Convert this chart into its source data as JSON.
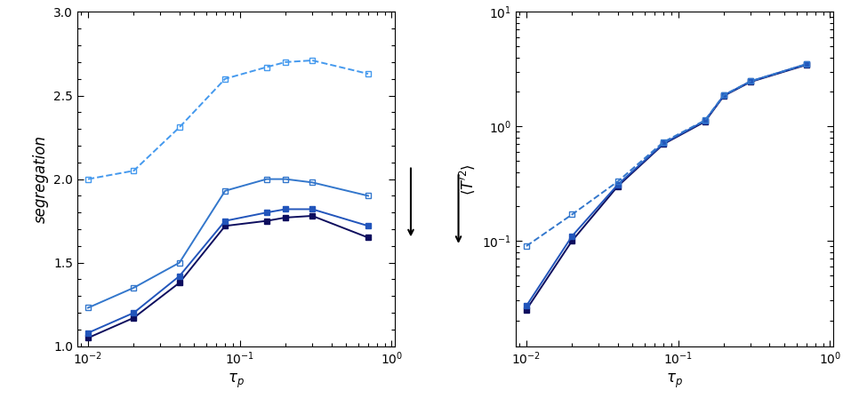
{
  "tau_p": [
    0.01,
    0.02,
    0.04,
    0.08,
    0.15,
    0.2,
    0.3,
    0.7
  ],
  "seg_solid1": [
    1.05,
    1.17,
    1.38,
    1.72,
    1.75,
    1.77,
    1.78,
    1.65
  ],
  "seg_solid2": [
    1.08,
    1.2,
    1.42,
    1.75,
    1.8,
    1.82,
    1.82,
    1.72
  ],
  "seg_solid3": [
    1.23,
    1.35,
    1.5,
    1.93,
    2.0,
    2.0,
    1.98,
    1.9
  ],
  "seg_dashed": [
    2.0,
    2.05,
    2.31,
    2.6,
    2.67,
    2.7,
    2.71,
    2.63
  ],
  "T2_solid1": [
    0.025,
    0.1,
    0.3,
    0.7,
    1.1,
    1.85,
    2.45,
    3.45
  ],
  "T2_solid2": [
    0.027,
    0.11,
    0.31,
    0.71,
    1.12,
    1.87,
    2.48,
    3.5
  ],
  "T2_dashed": [
    0.09,
    0.17,
    0.33,
    0.73,
    1.13,
    1.88,
    2.48,
    3.5
  ],
  "color_dark": "#0d0d5e",
  "color_mid": "#2255bb",
  "color_light": "#3377cc",
  "color_dashed_left": "#4499ee",
  "color_dashed_right": "#3377cc",
  "ylabel_left": "segregation",
  "ylabel_right": "$\\langle T'^{2} \\rangle$",
  "xlabel": "$\\tau_p$",
  "xlim_left": [
    0.0085,
    1.05
  ],
  "ylim_left": [
    1.0,
    3.0
  ],
  "xlim_right": [
    0.0085,
    1.05
  ],
  "ylim_right": [
    0.012,
    10.0
  ],
  "figsize": [
    9.66,
    4.48
  ],
  "dpi": 100
}
